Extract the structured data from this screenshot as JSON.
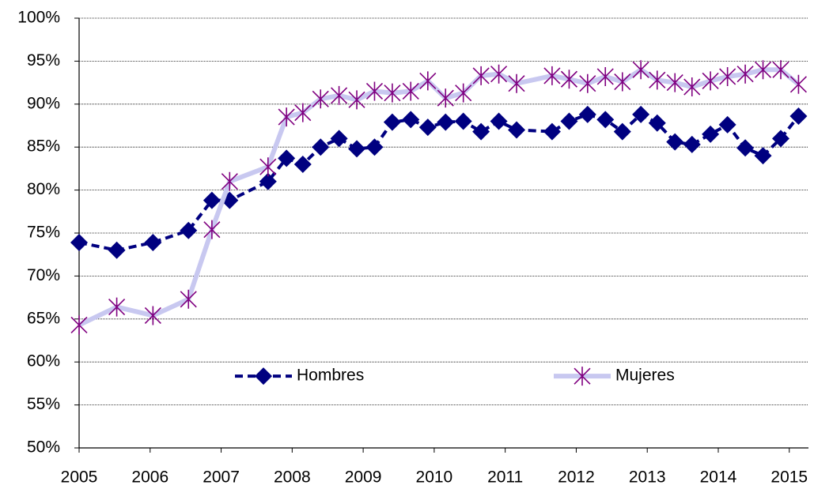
{
  "chart_data": {
    "type": "line",
    "x": [
      2005.0,
      2005.53,
      2006.04,
      2006.54,
      2006.87,
      2007.12,
      2007.66,
      2007.92,
      2008.15,
      2008.4,
      2008.66,
      2008.91,
      2009.16,
      2009.41,
      2009.67,
      2009.91,
      2010.16,
      2010.41,
      2010.66,
      2010.91,
      2011.16,
      2011.66,
      2011.9,
      2012.16,
      2012.41,
      2012.65,
      2012.91,
      2013.14,
      2013.39,
      2013.63,
      2013.89,
      2014.13,
      2014.38,
      2014.63,
      2014.88,
      2015.13
    ],
    "series": [
      {
        "name": "Hombres",
        "color": "#000080",
        "values": [
          73.9,
          73.0,
          73.9,
          75.3,
          78.8,
          78.8,
          81.0,
          83.7,
          83.0,
          85.0,
          86.0,
          84.8,
          85.0,
          87.9,
          88.2,
          87.3,
          87.9,
          88.0,
          86.8,
          88.0,
          87.0,
          86.8,
          88.0,
          88.8,
          88.2,
          86.8,
          88.8,
          87.8,
          85.6,
          85.3,
          86.5,
          87.6,
          84.9,
          84.0,
          86.0,
          88.6
        ]
      },
      {
        "name": "Mujeres",
        "color": "#800080",
        "values": [
          64.3,
          66.4,
          65.4,
          67.3,
          75.4,
          81.0,
          82.7,
          88.5,
          89.0,
          90.6,
          91.0,
          90.5,
          91.5,
          91.3,
          91.5,
          92.7,
          90.7,
          91.3,
          93.3,
          93.5,
          92.4,
          93.3,
          92.9,
          92.4,
          93.2,
          92.6,
          94.0,
          92.8,
          92.5,
          92.0,
          92.7,
          93.2,
          93.5,
          94.0,
          94.0,
          92.3
        ]
      }
    ],
    "xlim": [
      2005,
      2015.27
    ],
    "xticks": [
      2005,
      2006,
      2007,
      2008,
      2009,
      2010,
      2011,
      2012,
      2013,
      2014,
      2015
    ],
    "ylim": [
      50,
      100
    ],
    "yticks": [
      {
        "value": 50,
        "label": "50%"
      },
      {
        "value": 55,
        "label": "55%"
      },
      {
        "value": 60,
        "label": "60%"
      },
      {
        "value": 65,
        "label": "65%"
      },
      {
        "value": 70,
        "label": "70%"
      },
      {
        "value": 75,
        "label": "75%"
      },
      {
        "value": 80,
        "label": "80%"
      },
      {
        "value": 85,
        "label": "85%"
      },
      {
        "value": 90,
        "label": "90%"
      },
      {
        "value": 95,
        "label": "95%"
      },
      {
        "value": 100,
        "label": "100%"
      }
    ],
    "grid": true,
    "legend": "lower center"
  }
}
